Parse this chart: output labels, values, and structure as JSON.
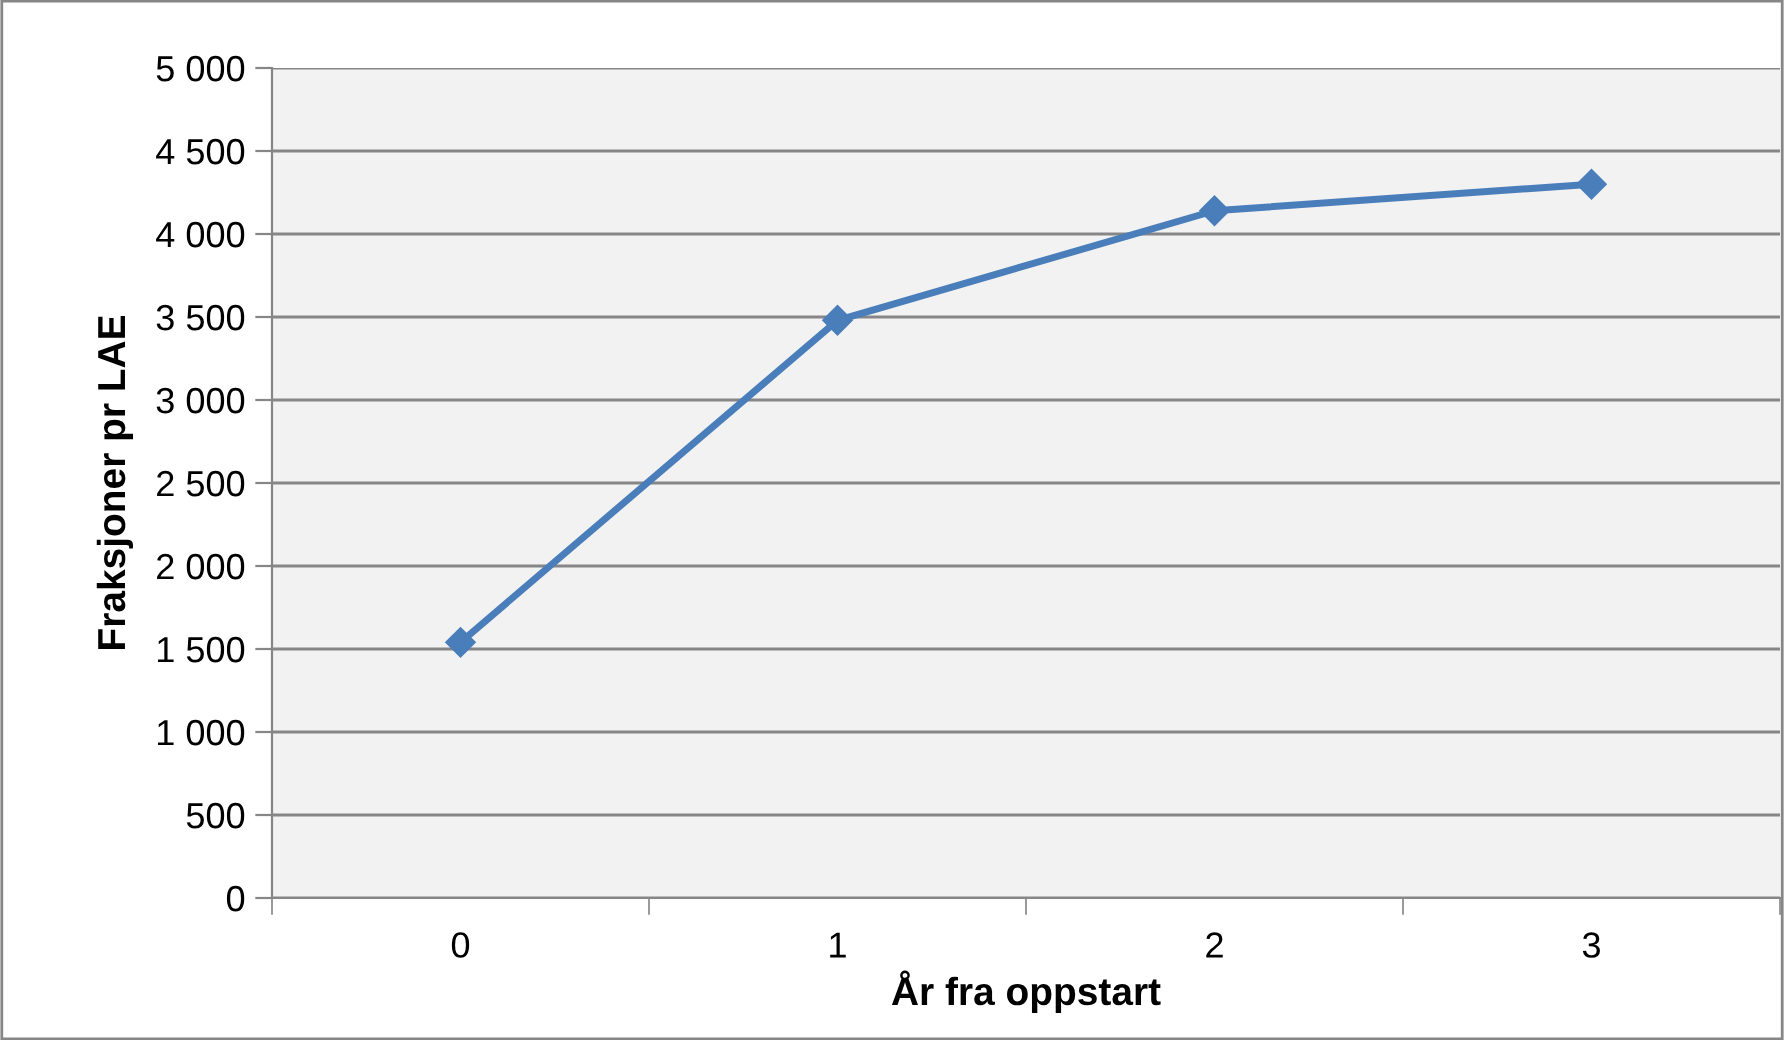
{
  "chart_data": {
    "type": "line",
    "xlabel": "År fra oppstart",
    "ylabel": "Fraksjoner pr LAE",
    "categories": [
      "0",
      "1",
      "2",
      "3"
    ],
    "series": [
      {
        "color": "#4a7ebb",
        "values": [
          1540,
          3480,
          4140,
          4300
        ]
      }
    ],
    "ylim": [
      0,
      5000
    ],
    "yticks": [
      0,
      500,
      {
        "value": 1000,
        "label": "1 000"
      },
      {
        "value": 1500,
        "label": "1 500"
      },
      {
        "value": 2000,
        "label": "2 000"
      },
      {
        "value": 2500,
        "label": "2 500"
      },
      {
        "value": 3000,
        "label": "3 000"
      },
      {
        "value": 3500,
        "label": "3 500"
      },
      {
        "value": 4000,
        "label": "4 000"
      },
      {
        "value": 4500,
        "label": "4 500"
      },
      {
        "value": 5000,
        "label": "5 000"
      }
    ],
    "grid": "y",
    "marker": "diamond",
    "line_style": "solid",
    "legend": false
  }
}
